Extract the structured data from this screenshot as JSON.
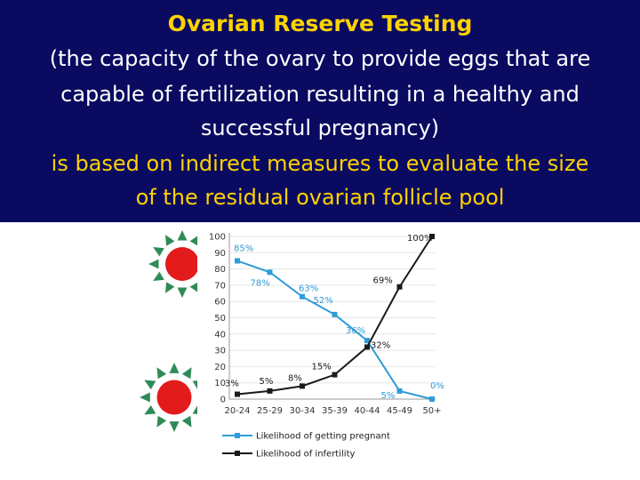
{
  "banner": {
    "title": "Ovarian Reserve Testing",
    "line1": "(the capacity of the ovary to provide eggs that are",
    "line2": "capable of fertilization resulting in a healthy and",
    "line3": "successful pregnancy)",
    "line4": "is based on indirect measures to evaluate the size",
    "line5": "of the residual ovarian follicle pool"
  },
  "decor": {
    "burst_icons": [
      "sun-burst-icon",
      "sun-burst-icon"
    ],
    "burst_center_color": "#e31b1b",
    "burst_ray_color": "#2e8b57"
  },
  "chart_data": {
    "type": "line",
    "categories": [
      "20-24",
      "25-29",
      "30-34",
      "35-39",
      "40-44",
      "45-49",
      "50+"
    ],
    "ylim": [
      0,
      100
    ],
    "yticks": [
      0,
      10,
      20,
      30,
      40,
      50,
      60,
      70,
      80,
      90,
      100
    ],
    "series": [
      {
        "name": "Likelihood of getting pregnant",
        "color": "#2f9bd8",
        "values": [
          85,
          78,
          63,
          52,
          36,
          5,
          0
        ],
        "labels": [
          "85%",
          "78%",
          "63%",
          "52%",
          "36%",
          "5%",
          "0%"
        ]
      },
      {
        "name": "Likelihood of infertility",
        "color": "#1a1a1a",
        "values": [
          3,
          5,
          8,
          15,
          32,
          69,
          100
        ],
        "labels": [
          "3%",
          "5%",
          "8%",
          "15%",
          "32%",
          "69%",
          "100%"
        ]
      }
    ],
    "legend": "bottom"
  }
}
